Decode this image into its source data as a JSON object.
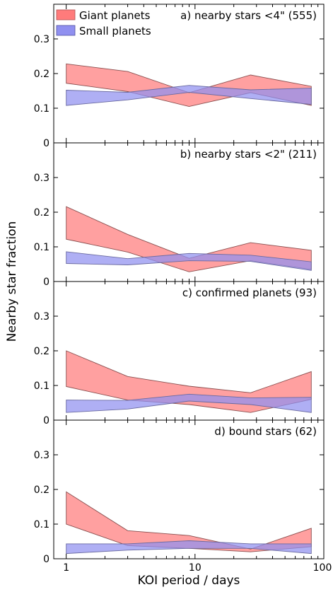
{
  "figure": {
    "ylabel": "Nearby star fraction",
    "xlabel": "KOI period / days"
  },
  "legend": {
    "placement": "top-left",
    "entries": [
      {
        "label": "Giant planets",
        "color": "#ff7b7b"
      },
      {
        "label": "Small planets",
        "color": "#9090f0"
      }
    ]
  },
  "chart_data": [
    {
      "type": "area",
      "title": "a) nearby stars <4\" (555)",
      "xscale": "log",
      "xlim": [
        0.8,
        100
      ],
      "ylim": [
        0,
        0.4
      ],
      "yticks": [
        "0",
        "0.1",
        "0.2",
        "0.3"
      ],
      "x": [
        1,
        3,
        9,
        27,
        80
      ],
      "series": [
        {
          "name": "Giant planets",
          "lower": [
            0.172,
            0.148,
            0.105,
            0.145,
            0.108
          ],
          "upper": [
            0.228,
            0.206,
            0.145,
            0.196,
            0.163
          ]
        },
        {
          "name": "Small planets",
          "lower": [
            0.108,
            0.124,
            0.146,
            0.128,
            0.111
          ],
          "upper": [
            0.152,
            0.146,
            0.166,
            0.153,
            0.158
          ]
        }
      ]
    },
    {
      "type": "area",
      "title": "b) nearby stars <2\" (211)",
      "xscale": "log",
      "xlim": [
        0.8,
        100
      ],
      "ylim": [
        0,
        0.4
      ],
      "yticks": [
        "0",
        "0.1",
        "0.2",
        "0.3"
      ],
      "x": [
        1,
        3,
        9,
        27,
        80
      ],
      "series": [
        {
          "name": "Giant planets",
          "lower": [
            0.122,
            0.085,
            0.028,
            0.06,
            0.035
          ],
          "upper": [
            0.216,
            0.136,
            0.067,
            0.112,
            0.09
          ]
        },
        {
          "name": "Small planets",
          "lower": [
            0.052,
            0.048,
            0.06,
            0.058,
            0.032
          ],
          "upper": [
            0.086,
            0.066,
            0.081,
            0.076,
            0.057
          ]
        }
      ]
    },
    {
      "type": "area",
      "title": "c) confirmed planets (93)",
      "xscale": "log",
      "xlim": [
        0.8,
        100
      ],
      "ylim": [
        0,
        0.4
      ],
      "yticks": [
        "0",
        "0.1",
        "0.2",
        "0.3"
      ],
      "x": [
        1,
        3,
        9,
        27,
        80
      ],
      "series": [
        {
          "name": "Giant planets",
          "lower": [
            0.097,
            0.058,
            0.045,
            0.022,
            0.06
          ],
          "upper": [
            0.2,
            0.126,
            0.098,
            0.079,
            0.14
          ]
        },
        {
          "name": "Small planets",
          "lower": [
            0.022,
            0.032,
            0.055,
            0.045,
            0.022
          ],
          "upper": [
            0.058,
            0.057,
            0.075,
            0.064,
            0.066
          ]
        }
      ]
    },
    {
      "type": "area",
      "title": "d) bound stars (62)",
      "xscale": "log",
      "xlim": [
        0.8,
        100
      ],
      "ylim": [
        0,
        0.4
      ],
      "yticks": [
        "0",
        "0.1",
        "0.2",
        "0.3"
      ],
      "x": [
        1,
        3,
        9,
        27,
        80
      ],
      "series": [
        {
          "name": "Giant planets",
          "lower": [
            0.1,
            0.038,
            0.03,
            0.02,
            0.035
          ],
          "upper": [
            0.193,
            0.081,
            0.067,
            0.028,
            0.088
          ]
        },
        {
          "name": "Small planets",
          "lower": [
            0.015,
            0.025,
            0.03,
            0.03,
            0.015
          ],
          "upper": [
            0.043,
            0.043,
            0.052,
            0.043,
            0.043
          ]
        }
      ]
    }
  ],
  "xticks": [
    {
      "value": 1,
      "label": "1"
    },
    {
      "value": 10,
      "label": "10"
    },
    {
      "value": 100,
      "label": "100"
    }
  ]
}
